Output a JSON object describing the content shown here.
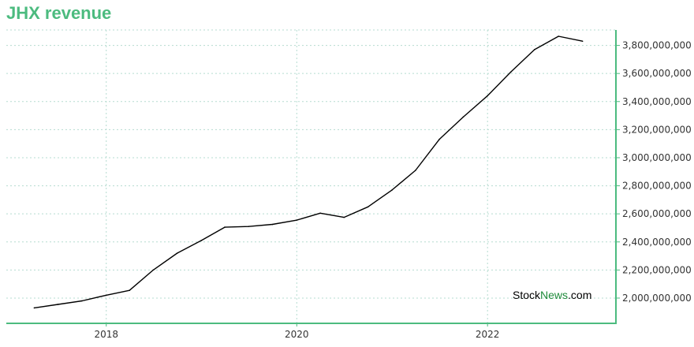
{
  "chart_data": {
    "type": "line",
    "title": "JHX revenue",
    "xlabel": "",
    "ylabel": "",
    "x_tick_labels": [
      "2018",
      "2020",
      "2022"
    ],
    "y_tick_labels": [
      "2,000,000,000",
      "2,200,000,000",
      "2,400,000,000",
      "2,600,000,000",
      "2,800,000,000",
      "3,000,000,000",
      "3,200,000,000",
      "3,400,000,000",
      "3,600,000,000",
      "3,800,000,000"
    ],
    "y_ticks": [
      2000000000,
      2200000000,
      2400000000,
      2600000000,
      2800000000,
      3000000000,
      3200000000,
      3400000000,
      3600000000,
      3800000000
    ],
    "ylim": [
      1820000000,
      3910000000
    ],
    "xlim": [
      "2016-12-14",
      "2023-05-08"
    ],
    "grid": true,
    "series": [
      {
        "color": "#000000",
        "points": [
          {
            "x": "2017-03-31",
            "y": 1930000000
          },
          {
            "x": "2017-06-30",
            "y": 1955000000
          },
          {
            "x": "2017-09-30",
            "y": 1980000000
          },
          {
            "x": "2017-12-31",
            "y": 2020000000
          },
          {
            "x": "2018-03-31",
            "y": 2055000000
          },
          {
            "x": "2018-06-30",
            "y": 2200000000
          },
          {
            "x": "2018-09-30",
            "y": 2320000000
          },
          {
            "x": "2018-12-31",
            "y": 2410000000
          },
          {
            "x": "2019-03-31",
            "y": 2505000000
          },
          {
            "x": "2019-06-30",
            "y": 2510000000
          },
          {
            "x": "2019-09-30",
            "y": 2525000000
          },
          {
            "x": "2019-12-31",
            "y": 2555000000
          },
          {
            "x": "2020-03-31",
            "y": 2605000000
          },
          {
            "x": "2020-06-30",
            "y": 2575000000
          },
          {
            "x": "2020-09-30",
            "y": 2650000000
          },
          {
            "x": "2020-12-31",
            "y": 2770000000
          },
          {
            "x": "2021-03-31",
            "y": 2910000000
          },
          {
            "x": "2021-06-30",
            "y": 3130000000
          },
          {
            "x": "2021-09-30",
            "y": 3290000000
          },
          {
            "x": "2021-12-31",
            "y": 3440000000
          },
          {
            "x": "2022-03-31",
            "y": 3610000000
          },
          {
            "x": "2022-06-30",
            "y": 3770000000
          },
          {
            "x": "2022-09-30",
            "y": 3865000000
          },
          {
            "x": "2022-12-31",
            "y": 3830000000
          }
        ]
      }
    ]
  },
  "watermark": {
    "part1": "Stock",
    "part2": "News",
    "part3": ".com"
  },
  "colors": {
    "title": "#4cbb7f",
    "axis": "#4cbb7f",
    "grid": "#b5dcd0",
    "line": "#000000",
    "watermark_dark": "#000000",
    "watermark_green": "#1e8a3a"
  }
}
